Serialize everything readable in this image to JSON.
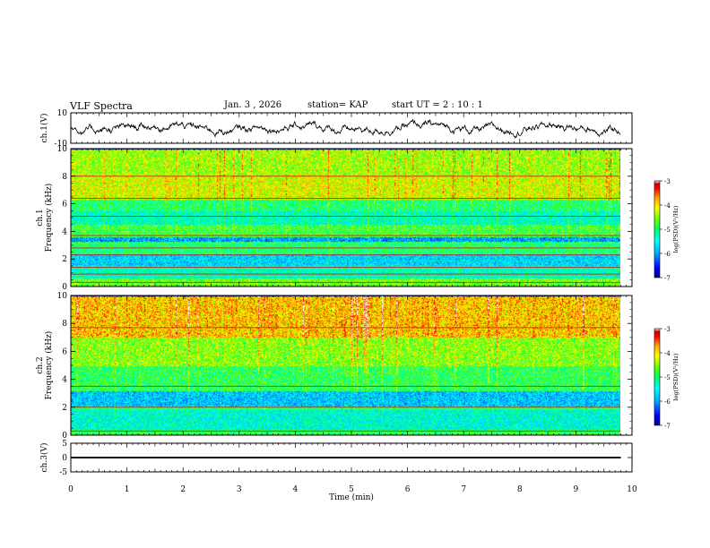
{
  "header": {
    "title": "VLF Spectra",
    "date": "Jan. 3  , 2026",
    "station": "station= KAP",
    "start": "start  UT  =   2  : 10 : 1"
  },
  "colors": {
    "scale": [
      "#000080",
      "#0000ff",
      "#00aaff",
      "#00ffff",
      "#00ff66",
      "#66ff00",
      "#ffff00",
      "#ffaa00",
      "#ff0000",
      "#cc0000",
      "#ffffff"
    ],
    "trace": "#000000"
  },
  "chart_data": [
    {
      "type": "line",
      "name": "ch1-waveform",
      "ylabel": "ch.1(V)",
      "ylim": [
        -10,
        10
      ],
      "yticks": [
        {
          "value": 10,
          "label": "10"
        },
        {
          "value": -10,
          "label": "-10"
        }
      ],
      "xlim": [
        0,
        10
      ],
      "x_data_end": 9.8,
      "signal_level": 0,
      "signal_amplitude_approx": 6
    },
    {
      "type": "heatmap",
      "name": "ch1-spectrogram",
      "ylabel": "ch.1\nFrequency (kHz)",
      "ylim": [
        0,
        10
      ],
      "yticks": [
        {
          "value": 0,
          "label": "0"
        },
        {
          "value": 2,
          "label": "2"
        },
        {
          "value": 4,
          "label": "4"
        },
        {
          "value": 6,
          "label": "6"
        },
        {
          "value": 8,
          "label": "8"
        },
        {
          "value": 10,
          "label": "10"
        }
      ],
      "xlim": [
        0,
        10
      ],
      "x_data_end": 9.8,
      "colorbar": {
        "label": "log(PSD)(V²/Hz)",
        "range": [
          -7,
          -3
        ],
        "ticks": [
          {
            "value": -3,
            "label": "-3"
          },
          {
            "value": -4,
            "label": "-4"
          },
          {
            "value": -5,
            "label": "-5"
          },
          {
            "value": -6,
            "label": "-6"
          },
          {
            "value": -7,
            "label": "-7"
          }
        ]
      },
      "bands": [
        {
          "f0": 0.0,
          "f1": 0.6,
          "level": -4.6
        },
        {
          "f0": 0.6,
          "f1": 1.5,
          "level": -5.3
        },
        {
          "f0": 1.5,
          "f1": 2.4,
          "level": -5.7
        },
        {
          "f0": 2.4,
          "f1": 3.3,
          "level": -5.0
        },
        {
          "f0": 3.3,
          "f1": 3.6,
          "level": -6.0
        },
        {
          "f0": 3.6,
          "f1": 4.5,
          "level": -4.8
        },
        {
          "f0": 4.5,
          "f1": 5.5,
          "level": -5.3
        },
        {
          "f0": 5.5,
          "f1": 6.3,
          "level": -5.0
        },
        {
          "f0": 6.3,
          "f1": 8.0,
          "level": -4.2
        },
        {
          "f0": 8.0,
          "f1": 10.0,
          "level": -4.4
        }
      ],
      "lines_khz": [
        0.3,
        0.9,
        1.4,
        2.3,
        2.8,
        3.7,
        5.1,
        6.4,
        8.0
      ],
      "burst_boost": 0.9
    },
    {
      "type": "heatmap",
      "name": "ch2-spectrogram",
      "ylabel": "ch.2\nFrequency (kHz)",
      "ylim": [
        0,
        10
      ],
      "yticks": [
        {
          "value": 0,
          "label": "0"
        },
        {
          "value": 2,
          "label": "2"
        },
        {
          "value": 4,
          "label": "4"
        },
        {
          "value": 6,
          "label": "6"
        },
        {
          "value": 8,
          "label": "8"
        },
        {
          "value": 10,
          "label": "10"
        }
      ],
      "xlim": [
        0,
        10
      ],
      "x_data_end": 9.8,
      "colorbar": {
        "label": "log(PSD)(V²/Hz)",
        "range": [
          -7,
          -3
        ],
        "ticks": [
          {
            "value": -3,
            "label": "-3"
          },
          {
            "value": -4,
            "label": "-4"
          },
          {
            "value": -5,
            "label": "-5"
          },
          {
            "value": -6,
            "label": "-6"
          },
          {
            "value": -7,
            "label": "-7"
          }
        ]
      },
      "bands": [
        {
          "f0": 0.0,
          "f1": 0.4,
          "level": -4.9
        },
        {
          "f0": 0.4,
          "f1": 1.8,
          "level": -5.4
        },
        {
          "f0": 1.8,
          "f1": 2.1,
          "level": -5.0
        },
        {
          "f0": 2.1,
          "f1": 3.2,
          "level": -5.8
        },
        {
          "f0": 3.2,
          "f1": 5.0,
          "level": -4.9
        },
        {
          "f0": 5.0,
          "f1": 7.0,
          "level": -4.5
        },
        {
          "f0": 7.0,
          "f1": 10.0,
          "level": -3.9
        }
      ],
      "lines_khz": [
        0.3,
        2.0,
        3.5,
        7.7
      ],
      "burst_boost": 1.1
    },
    {
      "type": "line",
      "name": "ch3-waveform",
      "ylabel": "ch.3(V)",
      "ylim": [
        -5,
        5
      ],
      "yticks": [
        {
          "value": 5,
          "label": "5"
        },
        {
          "value": 0,
          "label": "0"
        },
        {
          "value": -5,
          "label": "-5"
        }
      ],
      "xlim": [
        0,
        10
      ],
      "x_data_end": 9.8,
      "signal_level": 0,
      "signal_amplitude_approx": 0.6
    }
  ],
  "xaxis": {
    "label": "Time (min)",
    "ticks": [
      {
        "value": 0,
        "label": "0"
      },
      {
        "value": 1,
        "label": "1"
      },
      {
        "value": 2,
        "label": "2"
      },
      {
        "value": 3,
        "label": "3"
      },
      {
        "value": 4,
        "label": "4"
      },
      {
        "value": 5,
        "label": "5"
      },
      {
        "value": 6,
        "label": "6"
      },
      {
        "value": 7,
        "label": "7"
      },
      {
        "value": 8,
        "label": "8"
      },
      {
        "value": 9,
        "label": "9"
      },
      {
        "value": 10,
        "label": "10"
      }
    ]
  }
}
